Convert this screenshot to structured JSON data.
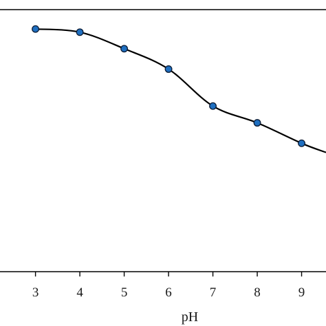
{
  "chart_data": {
    "type": "line",
    "xlabel": "pH",
    "ylabel": "",
    "x_ticks": [
      3,
      4,
      5,
      6,
      7,
      8,
      9
    ],
    "xlim": [
      2.2,
      9.55
    ],
    "ylim": [
      0,
      1
    ],
    "grid": false,
    "legend": "none",
    "series": [
      {
        "x": [
          3,
          4,
          5,
          6,
          7,
          8,
          9,
          9.55
        ],
        "y": [
          0.926,
          0.914,
          0.851,
          0.773,
          0.632,
          0.568,
          0.49,
          0.455
        ],
        "marker_count": 7,
        "line_color": "#000000",
        "marker_color": "#1f6fc0",
        "marker_edge": "#0a1a33"
      }
    ]
  }
}
